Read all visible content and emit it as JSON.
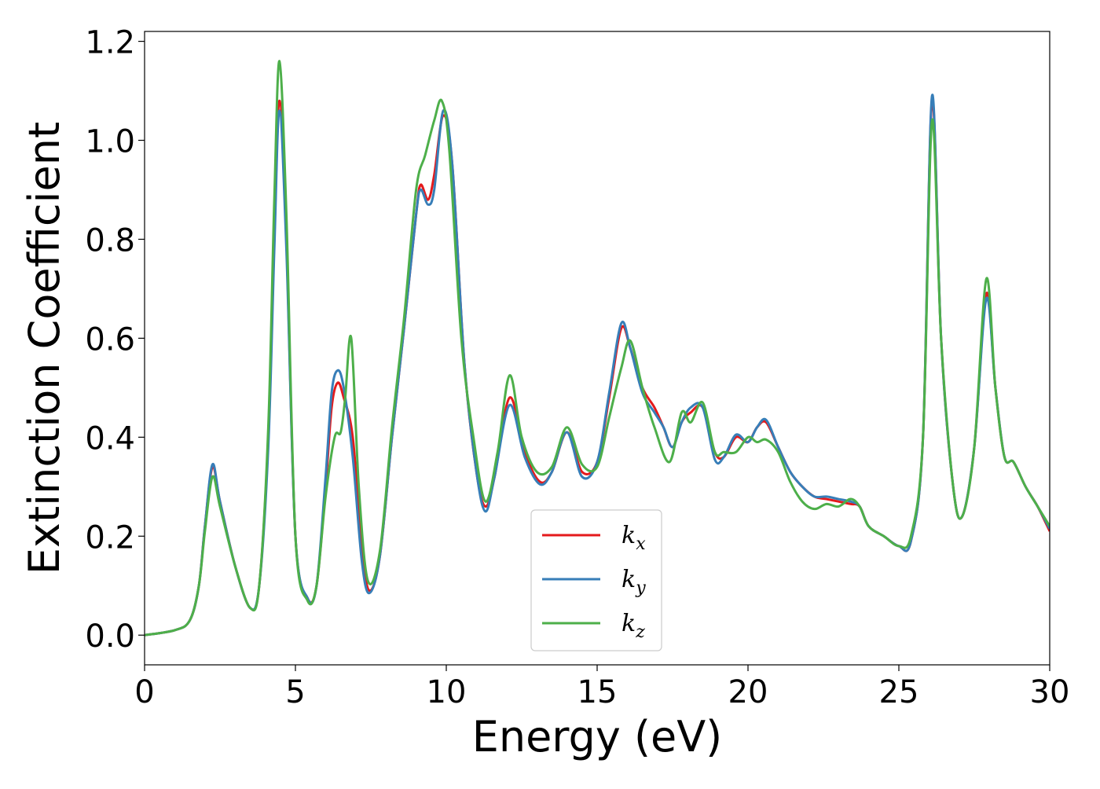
{
  "chart_data": {
    "type": "line",
    "title": "",
    "xlabel": "Energy (eV)",
    "ylabel": "Extinction Coefficient",
    "xlim": [
      0,
      30
    ],
    "ylim": [
      -0.06,
      1.22
    ],
    "xticks": [
      0,
      5,
      10,
      15,
      20,
      25,
      30
    ],
    "xtick_labels": [
      "0",
      "5",
      "10",
      "15",
      "20",
      "25",
      "30"
    ],
    "yticks": [
      0.0,
      0.2,
      0.4,
      0.6,
      0.8,
      1.0,
      1.2
    ],
    "ytick_labels": [
      "0.0",
      "0.2",
      "0.4",
      "0.6",
      "0.8",
      "1.0",
      "1.2"
    ],
    "grid": false,
    "legend": {
      "placement": "lower-center"
    },
    "series": [
      {
        "name": "k_x",
        "name_base": "k",
        "name_sub": "x",
        "color": "#e41a1c",
        "x": [
          0,
          1,
          1.5,
          1.8,
          2.0,
          2.25,
          2.5,
          3.0,
          3.5,
          3.8,
          4.1,
          4.3,
          4.47,
          4.7,
          5.0,
          5.4,
          5.7,
          6.0,
          6.2,
          6.4,
          6.6,
          6.9,
          7.2,
          7.45,
          7.8,
          8.2,
          8.6,
          9.0,
          9.15,
          9.4,
          9.6,
          9.9,
          10.2,
          10.6,
          11.0,
          11.3,
          11.6,
          12.1,
          12.6,
          13.1,
          13.5,
          14.0,
          14.5,
          15.0,
          15.4,
          15.8,
          16.1,
          16.5,
          16.9,
          17.2,
          17.5,
          17.8,
          18.1,
          18.5,
          18.9,
          19.2,
          19.6,
          20.0,
          20.3,
          20.6,
          21.0,
          21.4,
          21.8,
          22.2,
          22.6,
          23.0,
          23.4,
          23.7,
          24.0,
          24.5,
          25.0,
          25.4,
          25.8,
          26.1,
          26.4,
          26.8,
          27.1,
          27.5,
          27.9,
          28.2,
          28.5,
          28.8,
          29.2,
          29.6,
          30.0
        ],
        "y": [
          0.0,
          0.01,
          0.03,
          0.1,
          0.22,
          0.34,
          0.27,
          0.14,
          0.055,
          0.1,
          0.4,
          0.8,
          1.08,
          0.8,
          0.2,
          0.075,
          0.1,
          0.3,
          0.46,
          0.51,
          0.48,
          0.4,
          0.18,
          0.09,
          0.16,
          0.4,
          0.62,
          0.85,
          0.91,
          0.88,
          0.93,
          1.05,
          0.95,
          0.55,
          0.33,
          0.26,
          0.32,
          0.48,
          0.37,
          0.31,
          0.33,
          0.41,
          0.33,
          0.35,
          0.48,
          0.62,
          0.58,
          0.5,
          0.46,
          0.42,
          0.38,
          0.43,
          0.45,
          0.46,
          0.37,
          0.36,
          0.4,
          0.39,
          0.42,
          0.43,
          0.38,
          0.33,
          0.3,
          0.28,
          0.275,
          0.27,
          0.265,
          0.26,
          0.22,
          0.2,
          0.18,
          0.19,
          0.4,
          1.08,
          0.6,
          0.3,
          0.24,
          0.38,
          0.69,
          0.5,
          0.36,
          0.35,
          0.3,
          0.26,
          0.21
        ]
      },
      {
        "name": "k_y",
        "name_base": "k",
        "name_sub": "y",
        "color": "#377eb8",
        "x": [
          0,
          1,
          1.5,
          1.8,
          2.0,
          2.25,
          2.5,
          3.0,
          3.5,
          3.8,
          4.1,
          4.3,
          4.47,
          4.7,
          5.0,
          5.4,
          5.7,
          6.0,
          6.2,
          6.4,
          6.6,
          6.9,
          7.2,
          7.45,
          7.8,
          8.2,
          8.6,
          9.0,
          9.15,
          9.4,
          9.6,
          9.9,
          10.2,
          10.6,
          11.0,
          11.3,
          11.6,
          12.1,
          12.6,
          13.1,
          13.5,
          14.0,
          14.5,
          15.0,
          15.4,
          15.8,
          16.1,
          16.5,
          16.9,
          17.2,
          17.5,
          17.8,
          18.1,
          18.5,
          18.9,
          19.2,
          19.6,
          20.0,
          20.3,
          20.6,
          21.0,
          21.4,
          21.8,
          22.2,
          22.6,
          23.0,
          23.4,
          23.7,
          24.0,
          24.5,
          25.0,
          25.4,
          25.8,
          26.1,
          26.4,
          26.8,
          27.1,
          27.5,
          27.9,
          28.2,
          28.5,
          28.8,
          29.2,
          29.6,
          30.0
        ],
        "y": [
          0.0,
          0.01,
          0.03,
          0.1,
          0.22,
          0.345,
          0.27,
          0.14,
          0.055,
          0.1,
          0.38,
          0.78,
          1.06,
          0.78,
          0.2,
          0.075,
          0.1,
          0.32,
          0.49,
          0.535,
          0.5,
          0.36,
          0.15,
          0.085,
          0.16,
          0.4,
          0.62,
          0.85,
          0.9,
          0.87,
          0.9,
          1.06,
          0.95,
          0.55,
          0.33,
          0.25,
          0.32,
          0.465,
          0.36,
          0.305,
          0.33,
          0.41,
          0.32,
          0.35,
          0.49,
          0.63,
          0.58,
          0.49,
          0.45,
          0.42,
          0.38,
          0.43,
          0.46,
          0.46,
          0.355,
          0.36,
          0.405,
          0.39,
          0.42,
          0.435,
          0.38,
          0.33,
          0.3,
          0.28,
          0.28,
          0.275,
          0.27,
          0.26,
          0.22,
          0.2,
          0.18,
          0.19,
          0.4,
          1.09,
          0.6,
          0.3,
          0.24,
          0.38,
          0.68,
          0.5,
          0.36,
          0.35,
          0.3,
          0.26,
          0.215
        ]
      },
      {
        "name": "k_z",
        "name_base": "k",
        "name_sub": "z",
        "color": "#4daf4a",
        "x": [
          0,
          1,
          1.5,
          1.8,
          2.0,
          2.25,
          2.5,
          3.0,
          3.5,
          3.8,
          4.1,
          4.3,
          4.47,
          4.7,
          5.0,
          5.4,
          5.7,
          6.0,
          6.3,
          6.5,
          6.65,
          6.85,
          7.1,
          7.4,
          7.8,
          8.2,
          8.6,
          9.0,
          9.3,
          9.6,
          9.85,
          10.1,
          10.5,
          10.9,
          11.3,
          11.7,
          12.1,
          12.5,
          13.0,
          13.5,
          14.0,
          14.5,
          15.0,
          15.4,
          15.8,
          16.1,
          16.5,
          16.9,
          17.4,
          17.8,
          18.1,
          18.5,
          18.9,
          19.2,
          19.6,
          20.0,
          20.3,
          20.6,
          21.0,
          21.4,
          21.8,
          22.2,
          22.6,
          23.0,
          23.4,
          23.7,
          24.0,
          24.5,
          25.0,
          25.4,
          25.8,
          26.1,
          26.4,
          26.8,
          27.1,
          27.5,
          27.9,
          28.2,
          28.5,
          28.8,
          29.2,
          29.6,
          30.0
        ],
        "y": [
          0.0,
          0.01,
          0.03,
          0.1,
          0.21,
          0.32,
          0.26,
          0.14,
          0.055,
          0.1,
          0.42,
          0.88,
          1.16,
          0.85,
          0.2,
          0.07,
          0.1,
          0.28,
          0.4,
          0.41,
          0.48,
          0.6,
          0.3,
          0.11,
          0.17,
          0.42,
          0.64,
          0.9,
          0.97,
          1.04,
          1.08,
          0.98,
          0.6,
          0.4,
          0.27,
          0.37,
          0.525,
          0.4,
          0.33,
          0.34,
          0.42,
          0.345,
          0.34,
          0.44,
          0.54,
          0.595,
          0.5,
          0.42,
          0.35,
          0.45,
          0.43,
          0.47,
          0.37,
          0.37,
          0.37,
          0.4,
          0.39,
          0.395,
          0.37,
          0.31,
          0.27,
          0.255,
          0.265,
          0.26,
          0.275,
          0.26,
          0.22,
          0.2,
          0.18,
          0.2,
          0.4,
          1.04,
          0.6,
          0.3,
          0.24,
          0.38,
          0.72,
          0.5,
          0.36,
          0.35,
          0.3,
          0.26,
          0.22
        ]
      }
    ]
  }
}
